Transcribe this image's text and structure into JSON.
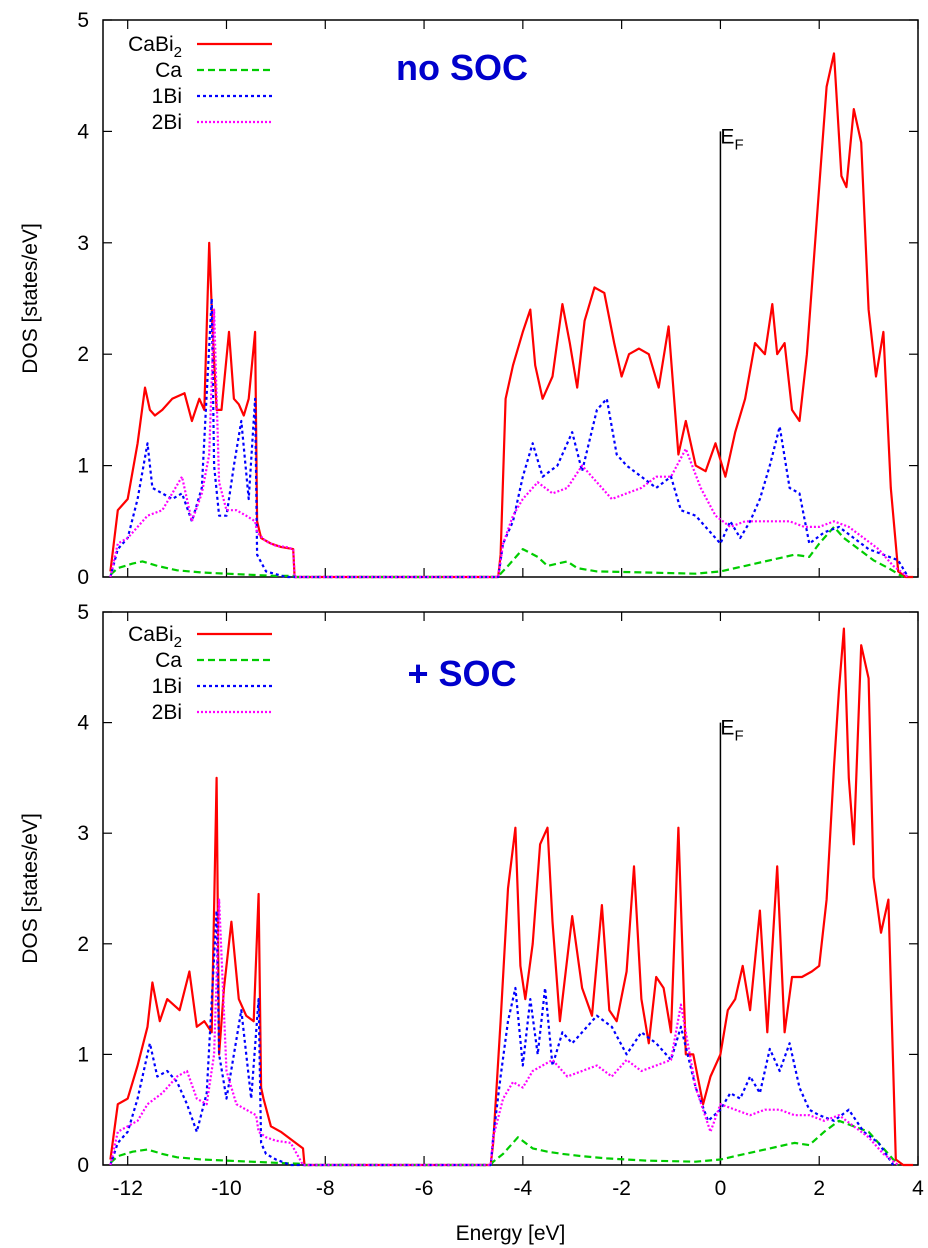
{
  "chart_data": [
    {
      "type": "line",
      "title": "no SOC",
      "xlabel": "Energy [eV]",
      "ylabel": "DOS [states/eV]",
      "xlim": [
        -12.5,
        4
      ],
      "ylim": [
        0,
        5
      ],
      "xticks": [
        "-12",
        "-10",
        "-8",
        "-6",
        "-4",
        "-2",
        "0",
        "2",
        "4"
      ],
      "yticks": [
        "0",
        "1",
        "2",
        "3",
        "4",
        "5"
      ],
      "fermi_label": "E",
      "fermi_sub": "F",
      "fermi_x": 0,
      "fermi_top": 4,
      "legend_position": "top-left",
      "series": [
        {
          "name": "CaBi",
          "name_sub": "2",
          "color": "#ff0000",
          "dash": "solid",
          "x": [
            -12.35,
            -12.2,
            -12.0,
            -11.8,
            -11.65,
            -11.55,
            -11.45,
            -11.3,
            -11.1,
            -10.85,
            -10.7,
            -10.55,
            -10.45,
            -10.35,
            -10.28,
            -10.2,
            -10.1,
            -9.95,
            -9.85,
            -9.75,
            -9.65,
            -9.55,
            -9.42,
            -9.38,
            -9.3,
            -9.1,
            -8.9,
            -8.65,
            -8.62,
            -8.0,
            -6.0,
            -4.5,
            -4.45,
            -4.35,
            -4.2,
            -4.0,
            -3.85,
            -3.75,
            -3.6,
            -3.4,
            -3.2,
            -3.05,
            -2.9,
            -2.75,
            -2.55,
            -2.35,
            -2.15,
            -2.0,
            -1.85,
            -1.65,
            -1.45,
            -1.25,
            -1.05,
            -0.85,
            -0.7,
            -0.5,
            -0.3,
            -0.1,
            0.1,
            0.3,
            0.5,
            0.7,
            0.9,
            1.05,
            1.15,
            1.3,
            1.45,
            1.6,
            1.75,
            2.0,
            2.15,
            2.3,
            2.45,
            2.55,
            2.7,
            2.85,
            3.0,
            3.15,
            3.3,
            3.45,
            3.6,
            3.75,
            3.9
          ],
          "values": [
            0.05,
            0.6,
            0.7,
            1.2,
            1.7,
            1.5,
            1.45,
            1.5,
            1.6,
            1.65,
            1.4,
            1.6,
            1.5,
            3.0,
            2.2,
            1.5,
            1.5,
            2.2,
            1.6,
            1.55,
            1.45,
            1.6,
            2.2,
            0.5,
            0.35,
            0.3,
            0.27,
            0.25,
            0.0,
            0.0,
            0.0,
            0.0,
            0.2,
            1.6,
            1.9,
            2.2,
            2.4,
            1.9,
            1.6,
            1.8,
            2.45,
            2.1,
            1.7,
            2.3,
            2.6,
            2.55,
            2.1,
            1.8,
            2.0,
            2.05,
            2.0,
            1.7,
            2.25,
            1.1,
            1.4,
            1.0,
            0.95,
            1.2,
            0.9,
            1.3,
            1.6,
            2.1,
            2.0,
            2.45,
            2.0,
            2.1,
            1.5,
            1.4,
            2.0,
            3.5,
            4.4,
            4.7,
            3.6,
            3.5,
            4.2,
            3.9,
            2.4,
            1.8,
            2.2,
            0.8,
            0.05,
            0.0,
            0.0
          ]
        },
        {
          "name": "Ca",
          "color": "#00cc00",
          "dash": "dashed",
          "x": [
            -12.35,
            -12.2,
            -11.9,
            -11.7,
            -11.4,
            -11.0,
            -10.5,
            -10.0,
            -9.5,
            -9.0,
            -8.65,
            -8.62,
            -4.5,
            -4.45,
            -4.3,
            -4.0,
            -3.7,
            -3.5,
            -3.1,
            -2.9,
            -2.5,
            -1.5,
            -0.5,
            0.0,
            0.5,
            1.0,
            1.5,
            1.8,
            2.0,
            2.3,
            2.5,
            2.8,
            3.1,
            3.4,
            3.7
          ],
          "values": [
            0.02,
            0.08,
            0.12,
            0.14,
            0.1,
            0.06,
            0.04,
            0.03,
            0.02,
            0.01,
            0.01,
            0.0,
            0.0,
            0.03,
            0.1,
            0.25,
            0.18,
            0.1,
            0.14,
            0.08,
            0.05,
            0.04,
            0.03,
            0.05,
            0.1,
            0.15,
            0.2,
            0.18,
            0.3,
            0.45,
            0.35,
            0.25,
            0.15,
            0.08,
            0.0
          ]
        },
        {
          "name": "1Bi",
          "color": "#0000ff",
          "dash": "dotted",
          "x": [
            -12.35,
            -12.2,
            -12.0,
            -11.8,
            -11.6,
            -11.5,
            -11.3,
            -11.1,
            -10.9,
            -10.7,
            -10.5,
            -10.3,
            -10.25,
            -10.15,
            -10.0,
            -9.85,
            -9.7,
            -9.55,
            -9.42,
            -9.38,
            -9.2,
            -8.8,
            -8.6,
            -4.5,
            -4.4,
            -4.2,
            -4.0,
            -3.8,
            -3.6,
            -3.3,
            -3.0,
            -2.8,
            -2.5,
            -2.3,
            -2.1,
            -1.9,
            -1.6,
            -1.3,
            -1.0,
            -0.8,
            -0.5,
            -0.2,
            0.0,
            0.2,
            0.4,
            0.6,
            0.8,
            1.0,
            1.2,
            1.4,
            1.6,
            1.8,
            2.1,
            2.4,
            2.7,
            3.0,
            3.3,
            3.6,
            3.8
          ],
          "values": [
            0.0,
            0.25,
            0.35,
            0.7,
            1.2,
            0.8,
            0.75,
            0.7,
            0.75,
            0.5,
            0.8,
            2.5,
            1.0,
            0.55,
            0.55,
            1.0,
            1.4,
            0.7,
            1.6,
            0.2,
            0.05,
            0.0,
            0.0,
            0.0,
            0.3,
            0.5,
            0.9,
            1.2,
            0.9,
            1.0,
            1.3,
            0.95,
            1.5,
            1.6,
            1.1,
            1.0,
            0.9,
            0.8,
            0.9,
            0.6,
            0.55,
            0.4,
            0.3,
            0.5,
            0.35,
            0.5,
            0.7,
            1.0,
            1.35,
            0.8,
            0.75,
            0.3,
            0.4,
            0.45,
            0.35,
            0.25,
            0.2,
            0.15,
            0.0
          ]
        },
        {
          "name": "2Bi",
          "color": "#ff00ff",
          "dash": "dotted-fine",
          "x": [
            -12.35,
            -12.2,
            -12.0,
            -11.8,
            -11.6,
            -11.3,
            -11.1,
            -10.9,
            -10.7,
            -10.5,
            -10.35,
            -10.25,
            -10.15,
            -10.0,
            -9.8,
            -9.6,
            -9.42,
            -9.38,
            -9.2,
            -9.0,
            -8.8,
            -8.65,
            -8.62,
            -4.5,
            -4.4,
            -4.2,
            -4.0,
            -3.7,
            -3.4,
            -3.1,
            -2.8,
            -2.5,
            -2.2,
            -1.9,
            -1.6,
            -1.3,
            -1.0,
            -0.7,
            -0.4,
            -0.1,
            0.2,
            0.5,
            0.8,
            1.1,
            1.4,
            1.7,
            2.0,
            2.3,
            2.6,
            2.9,
            3.2,
            3.5,
            3.8
          ],
          "values": [
            0.0,
            0.3,
            0.35,
            0.45,
            0.55,
            0.6,
            0.75,
            0.9,
            0.5,
            0.75,
            1.1,
            2.4,
            0.85,
            0.6,
            0.6,
            0.55,
            0.5,
            0.4,
            0.32,
            0.28,
            0.27,
            0.25,
            0.0,
            0.0,
            0.3,
            0.55,
            0.7,
            0.85,
            0.75,
            0.8,
            1.0,
            0.85,
            0.7,
            0.75,
            0.8,
            0.9,
            0.9,
            1.15,
            0.8,
            0.55,
            0.45,
            0.5,
            0.5,
            0.5,
            0.5,
            0.45,
            0.45,
            0.5,
            0.45,
            0.35,
            0.25,
            0.1,
            0.0
          ]
        }
      ]
    },
    {
      "type": "line",
      "title": "+ SOC",
      "xlabel": "Energy [eV]",
      "ylabel": "DOS [states/eV]",
      "xlim": [
        -12.5,
        4
      ],
      "ylim": [
        0,
        5
      ],
      "xticks": [
        "-12",
        "-10",
        "-8",
        "-6",
        "-4",
        "-2",
        "0",
        "2",
        "4"
      ],
      "yticks": [
        "0",
        "1",
        "2",
        "3",
        "4",
        "5"
      ],
      "fermi_label": "E",
      "fermi_sub": "F",
      "fermi_x": 0,
      "fermi_top": 4,
      "legend_position": "top-left",
      "series": [
        {
          "name": "CaBi",
          "name_sub": "2",
          "color": "#ff0000",
          "dash": "solid",
          "x": [
            -12.35,
            -12.2,
            -12.0,
            -11.8,
            -11.6,
            -11.5,
            -11.35,
            -11.2,
            -10.95,
            -10.75,
            -10.6,
            -10.45,
            -10.3,
            -10.2,
            -10.15,
            -10.05,
            -9.9,
            -9.75,
            -9.6,
            -9.45,
            -9.35,
            -9.3,
            -9.25,
            -9.1,
            -8.9,
            -8.6,
            -8.45,
            -8.42,
            -6.0,
            -4.65,
            -4.6,
            -4.45,
            -4.3,
            -4.15,
            -4.05,
            -3.95,
            -3.8,
            -3.65,
            -3.5,
            -3.4,
            -3.25,
            -3.0,
            -2.8,
            -2.6,
            -2.4,
            -2.25,
            -2.1,
            -1.9,
            -1.75,
            -1.6,
            -1.45,
            -1.3,
            -1.15,
            -1.0,
            -0.85,
            -0.7,
            -0.55,
            -0.35,
            -0.2,
            0.0,
            0.15,
            0.3,
            0.45,
            0.6,
            0.8,
            0.95,
            1.15,
            1.3,
            1.45,
            1.65,
            1.85,
            2.0,
            2.15,
            2.3,
            2.4,
            2.5,
            2.6,
            2.7,
            2.85,
            3.0,
            3.1,
            3.25,
            3.4,
            3.55,
            3.7,
            3.9
          ],
          "values": [
            0.05,
            0.55,
            0.6,
            0.9,
            1.25,
            1.65,
            1.3,
            1.5,
            1.4,
            1.75,
            1.25,
            1.3,
            1.2,
            3.5,
            1.0,
            1.6,
            2.2,
            1.5,
            1.35,
            1.3,
            2.45,
            0.7,
            0.6,
            0.35,
            0.3,
            0.2,
            0.15,
            0.0,
            0.0,
            0.0,
            0.2,
            1.3,
            2.5,
            3.05,
            1.8,
            1.5,
            2.0,
            2.9,
            3.05,
            2.2,
            1.3,
            2.25,
            1.6,
            1.35,
            2.35,
            1.4,
            1.3,
            1.75,
            2.7,
            1.5,
            1.1,
            1.7,
            1.6,
            1.2,
            3.05,
            1.0,
            1.0,
            0.55,
            0.8,
            1.0,
            1.4,
            1.5,
            1.8,
            1.4,
            2.3,
            1.2,
            2.7,
            1.2,
            1.7,
            1.7,
            1.75,
            1.8,
            2.4,
            3.6,
            4.3,
            4.85,
            3.5,
            2.9,
            4.7,
            4.4,
            2.6,
            2.1,
            2.4,
            0.05,
            0.0,
            0.0
          ]
        },
        {
          "name": "Ca",
          "color": "#00cc00",
          "dash": "dashed",
          "x": [
            -12.35,
            -12.2,
            -11.9,
            -11.6,
            -11.3,
            -11.0,
            -10.5,
            -10.0,
            -9.5,
            -9.0,
            -8.45,
            -8.42,
            -4.65,
            -4.6,
            -4.4,
            -4.1,
            -3.8,
            -3.5,
            -3.2,
            -2.8,
            -2.3,
            -1.5,
            -0.5,
            0.0,
            0.5,
            1.0,
            1.5,
            1.8,
            2.1,
            2.4,
            2.7,
            3.0,
            3.3,
            3.6
          ],
          "values": [
            0.02,
            0.08,
            0.12,
            0.14,
            0.1,
            0.07,
            0.05,
            0.04,
            0.03,
            0.02,
            0.01,
            0.0,
            0.0,
            0.03,
            0.1,
            0.25,
            0.15,
            0.12,
            0.1,
            0.08,
            0.06,
            0.04,
            0.03,
            0.05,
            0.1,
            0.15,
            0.2,
            0.18,
            0.3,
            0.4,
            0.35,
            0.3,
            0.15,
            0.0
          ]
        },
        {
          "name": "1Bi",
          "color": "#0000ff",
          "dash": "dotted",
          "x": [
            -12.35,
            -12.2,
            -12.0,
            -11.8,
            -11.55,
            -11.4,
            -11.2,
            -11.0,
            -10.8,
            -10.6,
            -10.4,
            -10.2,
            -10.15,
            -10.0,
            -9.85,
            -9.7,
            -9.5,
            -9.35,
            -9.3,
            -9.2,
            -9.0,
            -8.7,
            -8.45,
            -4.65,
            -4.6,
            -4.45,
            -4.3,
            -4.15,
            -4.0,
            -3.85,
            -3.7,
            -3.55,
            -3.4,
            -3.2,
            -3.0,
            -2.8,
            -2.5,
            -2.2,
            -1.9,
            -1.6,
            -1.3,
            -1.0,
            -0.8,
            -0.5,
            -0.25,
            0.0,
            0.2,
            0.4,
            0.6,
            0.8,
            1.0,
            1.2,
            1.4,
            1.6,
            1.8,
            2.0,
            2.3,
            2.6,
            2.9,
            3.2,
            3.5
          ],
          "values": [
            0.0,
            0.2,
            0.3,
            0.6,
            1.1,
            0.8,
            0.85,
            0.75,
            0.55,
            0.3,
            0.65,
            2.3,
            1.0,
            0.6,
            1.0,
            1.4,
            0.6,
            1.5,
            0.2,
            0.1,
            0.05,
            0.0,
            0.0,
            0.0,
            0.25,
            0.8,
            1.3,
            1.6,
            0.9,
            1.5,
            1.0,
            1.6,
            0.9,
            1.2,
            1.1,
            1.2,
            1.35,
            1.25,
            1.0,
            1.2,
            1.1,
            0.95,
            1.25,
            0.7,
            0.4,
            0.5,
            0.65,
            0.6,
            0.8,
            0.65,
            1.05,
            0.85,
            1.1,
            0.7,
            0.5,
            0.45,
            0.4,
            0.5,
            0.3,
            0.2,
            0.0
          ]
        },
        {
          "name": "2Bi",
          "color": "#ff00ff",
          "dash": "dotted-fine",
          "x": [
            -12.35,
            -12.2,
            -12.0,
            -11.8,
            -11.6,
            -11.3,
            -11.0,
            -10.8,
            -10.6,
            -10.4,
            -10.25,
            -10.15,
            -10.0,
            -9.8,
            -9.6,
            -9.4,
            -9.35,
            -9.2,
            -9.0,
            -8.7,
            -8.45,
            -4.65,
            -4.6,
            -4.4,
            -4.2,
            -4.0,
            -3.8,
            -3.6,
            -3.4,
            -3.1,
            -2.8,
            -2.5,
            -2.2,
            -1.9,
            -1.6,
            -1.3,
            -1.0,
            -0.8,
            -0.5,
            -0.2,
            0.0,
            0.3,
            0.6,
            0.9,
            1.2,
            1.5,
            1.8,
            2.1,
            2.4,
            2.7,
            3.0,
            3.3,
            3.6
          ],
          "values": [
            0.0,
            0.3,
            0.35,
            0.4,
            0.55,
            0.65,
            0.8,
            0.85,
            0.6,
            0.55,
            1.0,
            2.4,
            0.85,
            0.55,
            0.5,
            0.45,
            0.3,
            0.25,
            0.22,
            0.2,
            0.0,
            0.0,
            0.25,
            0.6,
            0.75,
            0.7,
            0.85,
            0.9,
            0.95,
            0.8,
            0.85,
            0.9,
            0.8,
            0.95,
            0.85,
            0.9,
            0.95,
            1.45,
            0.7,
            0.3,
            0.55,
            0.5,
            0.45,
            0.5,
            0.5,
            0.45,
            0.45,
            0.4,
            0.45,
            0.35,
            0.25,
            0.1,
            0.0
          ]
        }
      ]
    }
  ]
}
